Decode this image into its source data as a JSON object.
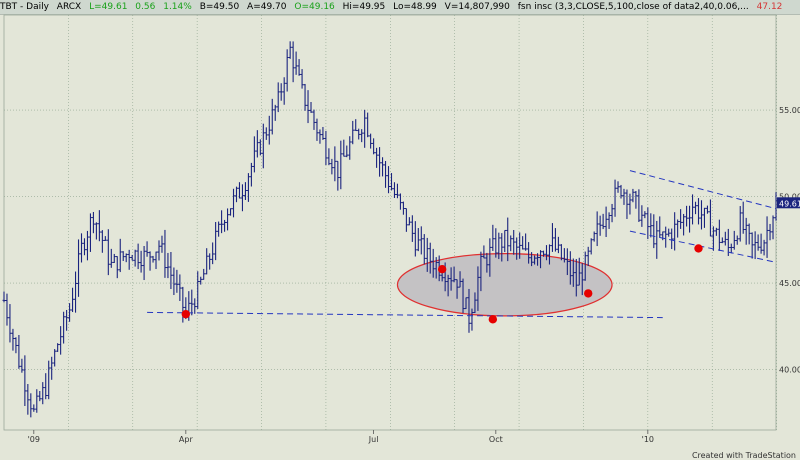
{
  "header": {
    "symbol": "TBT - Daily",
    "exchange": "ARCX",
    "last": "L=49.61",
    "change": "0.56",
    "change_pct": "1.14%",
    "bid": "B=49.50",
    "ask": "A=49.70",
    "open": "O=49.16",
    "high": "Hi=49.95",
    "low": "Lo=48.99",
    "volume": "V=14,807,990",
    "study": "fsn insc (3,3,CLOSE,5,100,close of data2,40,0.06,...",
    "study_value": "47.12"
  },
  "footer": {
    "credit": "Created with TradeStation"
  },
  "colors": {
    "background": "#e3e6d8",
    "bars": "#1a237e",
    "grid": "#8ea48e",
    "markers": "#e60000",
    "ellipse_fill": "#c4c2c4",
    "ellipse_stroke": "#e03030",
    "trendline": "#2436c0",
    "price_tag": "#1a237e"
  },
  "chart_data": {
    "type": "ohlc",
    "title": "",
    "ylim": [
      36.5,
      60.5
    ],
    "y_ticks": [
      "40.00",
      "45.00",
      "50.00",
      "55.00"
    ],
    "x_tick_labels": [
      "'09",
      "Apr",
      "Jul",
      "Oct",
      "'10"
    ],
    "last_price_label": "49.61",
    "grid": true,
    "trading_days": 260,
    "price_path": [
      [
        0,
        44.0
      ],
      [
        5,
        40.5
      ],
      [
        10,
        37.5
      ],
      [
        14,
        39.0
      ],
      [
        18,
        41.5
      ],
      [
        22,
        43.5
      ],
      [
        26,
        47.0
      ],
      [
        30,
        49.0
      ],
      [
        36,
        46.0
      ],
      [
        42,
        46.8
      ],
      [
        48,
        46.5
      ],
      [
        52,
        47.2
      ],
      [
        56,
        45.5
      ],
      [
        61,
        43.2
      ],
      [
        65,
        44.5
      ],
      [
        69,
        46.5
      ],
      [
        74,
        49.0
      ],
      [
        80,
        50.5
      ],
      [
        86,
        53.0
      ],
      [
        92,
        55.5
      ],
      [
        96,
        58.5
      ],
      [
        100,
        56.0
      ],
      [
        106,
        53.5
      ],
      [
        112,
        51.5
      ],
      [
        116,
        53.0
      ],
      [
        121,
        54.5
      ],
      [
        126,
        52.0
      ],
      [
        130,
        50.5
      ],
      [
        134,
        49.0
      ],
      [
        138,
        47.5
      ],
      [
        142,
        46.5
      ],
      [
        147,
        45.8
      ],
      [
        152,
        45.2
      ],
      [
        156,
        43.0
      ],
      [
        160,
        46.0
      ],
      [
        164,
        47.0
      ],
      [
        168,
        47.5
      ],
      [
        172,
        47.0
      ],
      [
        176,
        46.5
      ],
      [
        180,
        47.0
      ],
      [
        184,
        47.2
      ],
      [
        188,
        46.2
      ],
      [
        192,
        45.0
      ],
      [
        195,
        46.0
      ],
      [
        199,
        48.0
      ],
      [
        203,
        49.5
      ],
      [
        207,
        50.5
      ],
      [
        211,
        49.8
      ],
      [
        215,
        48.5
      ],
      [
        219,
        47.5
      ],
      [
        223,
        47.8
      ],
      [
        227,
        48.5
      ],
      [
        231,
        49.5
      ],
      [
        235,
        48.8
      ],
      [
        239,
        47.8
      ],
      [
        243,
        47.0
      ],
      [
        247,
        48.5
      ],
      [
        251,
        47.0
      ],
      [
        255,
        47.5
      ],
      [
        259,
        49.6
      ]
    ],
    "markers": [
      {
        "x": 61,
        "price": 43.2
      },
      {
        "x": 147,
        "price": 45.8
      },
      {
        "x": 164,
        "price": 42.9
      },
      {
        "x": 196,
        "price": 44.4
      },
      {
        "x": 233,
        "price": 47.0
      }
    ],
    "support_line": {
      "x1": 48,
      "y1": 43.3,
      "x2": 221,
      "y2": 43.0
    },
    "channel_upper": {
      "x1": 210,
      "y1": 51.5,
      "x2": 259,
      "y2": 49.3
    },
    "channel_lower": {
      "x1": 210,
      "y1": 48.0,
      "x2": 259,
      "y2": 46.2
    },
    "ellipse": {
      "cx": 168,
      "cy": 44.9,
      "rx": 36,
      "ry": 1.8
    }
  }
}
